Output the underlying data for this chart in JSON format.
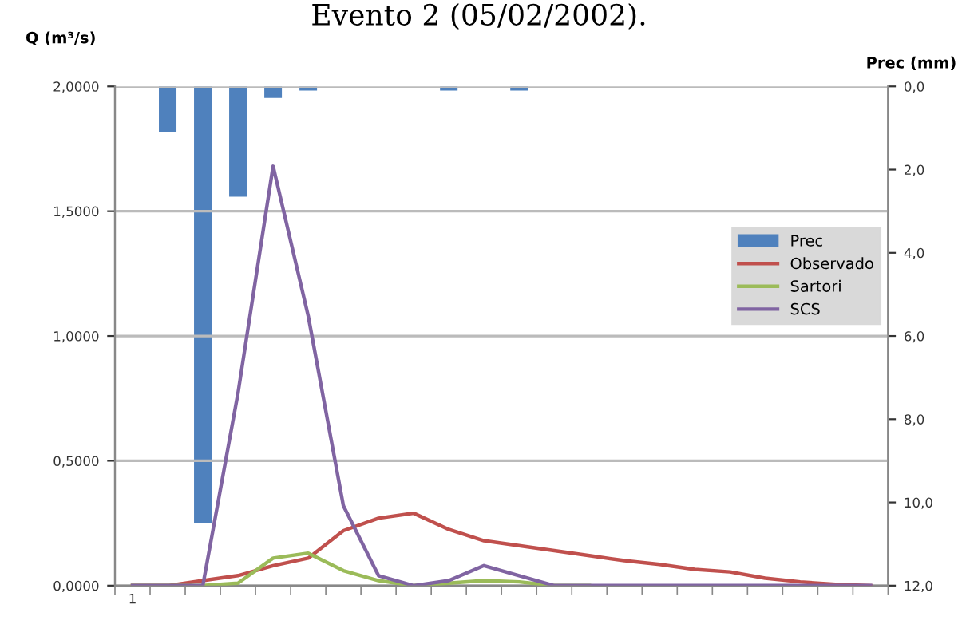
{
  "chart_data": {
    "type": "line",
    "title": "Evento 2 (05/02/2002).",
    "ylabel": "Q (m³/s)",
    "y2label": "Prec (mm)",
    "categories": [
      "1",
      null,
      null,
      null,
      null,
      null,
      null,
      null,
      null,
      null,
      null,
      null,
      null,
      null,
      null,
      null,
      null,
      null,
      null,
      null,
      null,
      null
    ],
    "series": [
      {
        "name": "Prec",
        "type": "bar",
        "axis": "y2",
        "color": "#4f81bd",
        "values": [
          0,
          1.1,
          10.5,
          2.65,
          0.28,
          0.1,
          0,
          0,
          0,
          0.1,
          0,
          0.1,
          0,
          0,
          0,
          0,
          0,
          0,
          0,
          0,
          0,
          0
        ]
      },
      {
        "name": "Observado",
        "color": "#c0504d",
        "values": [
          0,
          0,
          0.02,
          0.04,
          0.08,
          0.11,
          0.22,
          0.27,
          0.29,
          0.225,
          0.18,
          0.16,
          0.14,
          0.12,
          0.1,
          0.085,
          0.065,
          0.055,
          0.03,
          0.015,
          0.005,
          0
        ]
      },
      {
        "name": "Sartori",
        "color": "#9bbb59",
        "values": [
          0,
          0,
          0,
          0.01,
          0.11,
          0.13,
          0.06,
          0.02,
          0,
          0.01,
          0.02,
          0.015,
          0,
          0,
          null,
          null,
          null,
          null,
          null,
          null,
          null,
          null
        ]
      },
      {
        "name": "SCS",
        "color": "#8064a2",
        "values": [
          0,
          0,
          0,
          0.77,
          1.68,
          1.08,
          0.32,
          0.04,
          0,
          0.02,
          0.08,
          0.04,
          0,
          0,
          0,
          0,
          0,
          0,
          0,
          0,
          0,
          0
        ]
      }
    ],
    "ylim": [
      0,
      2
    ],
    "yticks": [
      {
        "value": 0,
        "label": "0,0000"
      },
      {
        "value": 0.5,
        "label": "0,5000"
      },
      {
        "value": 1,
        "label": "1,0000"
      },
      {
        "value": 1.5,
        "label": "1,5000"
      },
      {
        "value": 2,
        "label": "2,0000"
      }
    ],
    "y2lim": [
      12,
      0
    ],
    "y2ticks": [
      {
        "value": 0,
        "label": "0,0"
      },
      {
        "value": 2,
        "label": "2,0"
      },
      {
        "value": 4,
        "label": "4,0"
      },
      {
        "value": 6,
        "label": "6,0"
      },
      {
        "value": 8,
        "label": "8,0"
      },
      {
        "value": 10,
        "label": "10,0"
      },
      {
        "value": 12,
        "label": "12,0"
      }
    ],
    "grid": "y",
    "legend": "right",
    "marker": "none",
    "line_style": "solid"
  }
}
